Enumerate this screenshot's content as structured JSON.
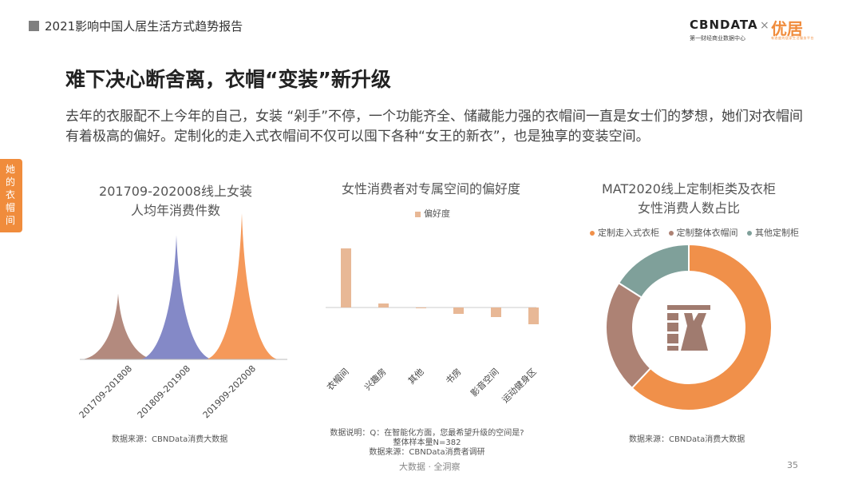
{
  "header": {
    "report_title": "2021影响中国人居生活方式趋势报告",
    "logo_brand": "CBNDATA",
    "logo_brand_sub": "第一财经商业数据中心",
    "logo_times": "×",
    "logo_partner": "优居",
    "logo_partner_sub": "有态度的居家生活服务平台"
  },
  "page": {
    "title": "难下决心断舍离，衣帽“变装”新升级",
    "intro": "去年的衣服配不上今年的自己，女装 “剁手”不停，一个功能齐全、储藏能力强的衣帽间一直是女士们的梦想，她们对衣帽间有着极高的偏好。定制化的走入式衣帽间不仅可以囤下各种“女王的新衣”，也是独享的变装空间。",
    "side_tab": "她的衣帽间",
    "footer": "大数据 · 全洞察",
    "page_number": "35"
  },
  "colors": {
    "accent": "#f08c3c",
    "c1": [
      "#b38a7e",
      "#8489c7",
      "#f5995a"
    ],
    "bar": "#e8b896",
    "donut": [
      "#f0904a",
      "#ad8274",
      "#7fa09a"
    ]
  },
  "chart_data": [
    {
      "type": "area",
      "title": [
        "201709-202008线上女装",
        "人均年消费件数"
      ],
      "categories": [
        "201709-201808",
        "201809-201908",
        "201909-202008"
      ],
      "values": [
        0.45,
        0.85,
        1.0
      ],
      "ylim": [
        0,
        1
      ],
      "legend": "none",
      "grid": false,
      "source": "数据来源：CBNData消费大数据"
    },
    {
      "type": "bar",
      "title": "女性消费者对专属空间的偏好度",
      "categories": [
        "衣帽间",
        "兴趣房",
        "其他",
        "书房",
        "影音空间",
        "运动健身区"
      ],
      "series": [
        {
          "name": "偏好度",
          "values": [
            0.74,
            0.05,
            -0.01,
            -0.08,
            -0.12,
            -0.21
          ]
        }
      ],
      "ylim": [
        -0.3,
        0.8
      ],
      "legend": "top",
      "grid": false,
      "note": [
        "数据说明：Q：在智能化方面，您最希望升级的空间是?",
        "整体样本量N=382",
        "数据来源：CBNData消费者调研"
      ]
    },
    {
      "type": "pie",
      "title": [
        "MAT2020线上定制柜类及衣柜",
        "女性消费人数占比"
      ],
      "labels": [
        "定制走入式衣柜",
        "定制整体衣帽间",
        "其他定制柜"
      ],
      "values": [
        0.62,
        0.22,
        0.16
      ],
      "legend": "top",
      "source": "数据来源：CBNData消费大数据"
    }
  ]
}
